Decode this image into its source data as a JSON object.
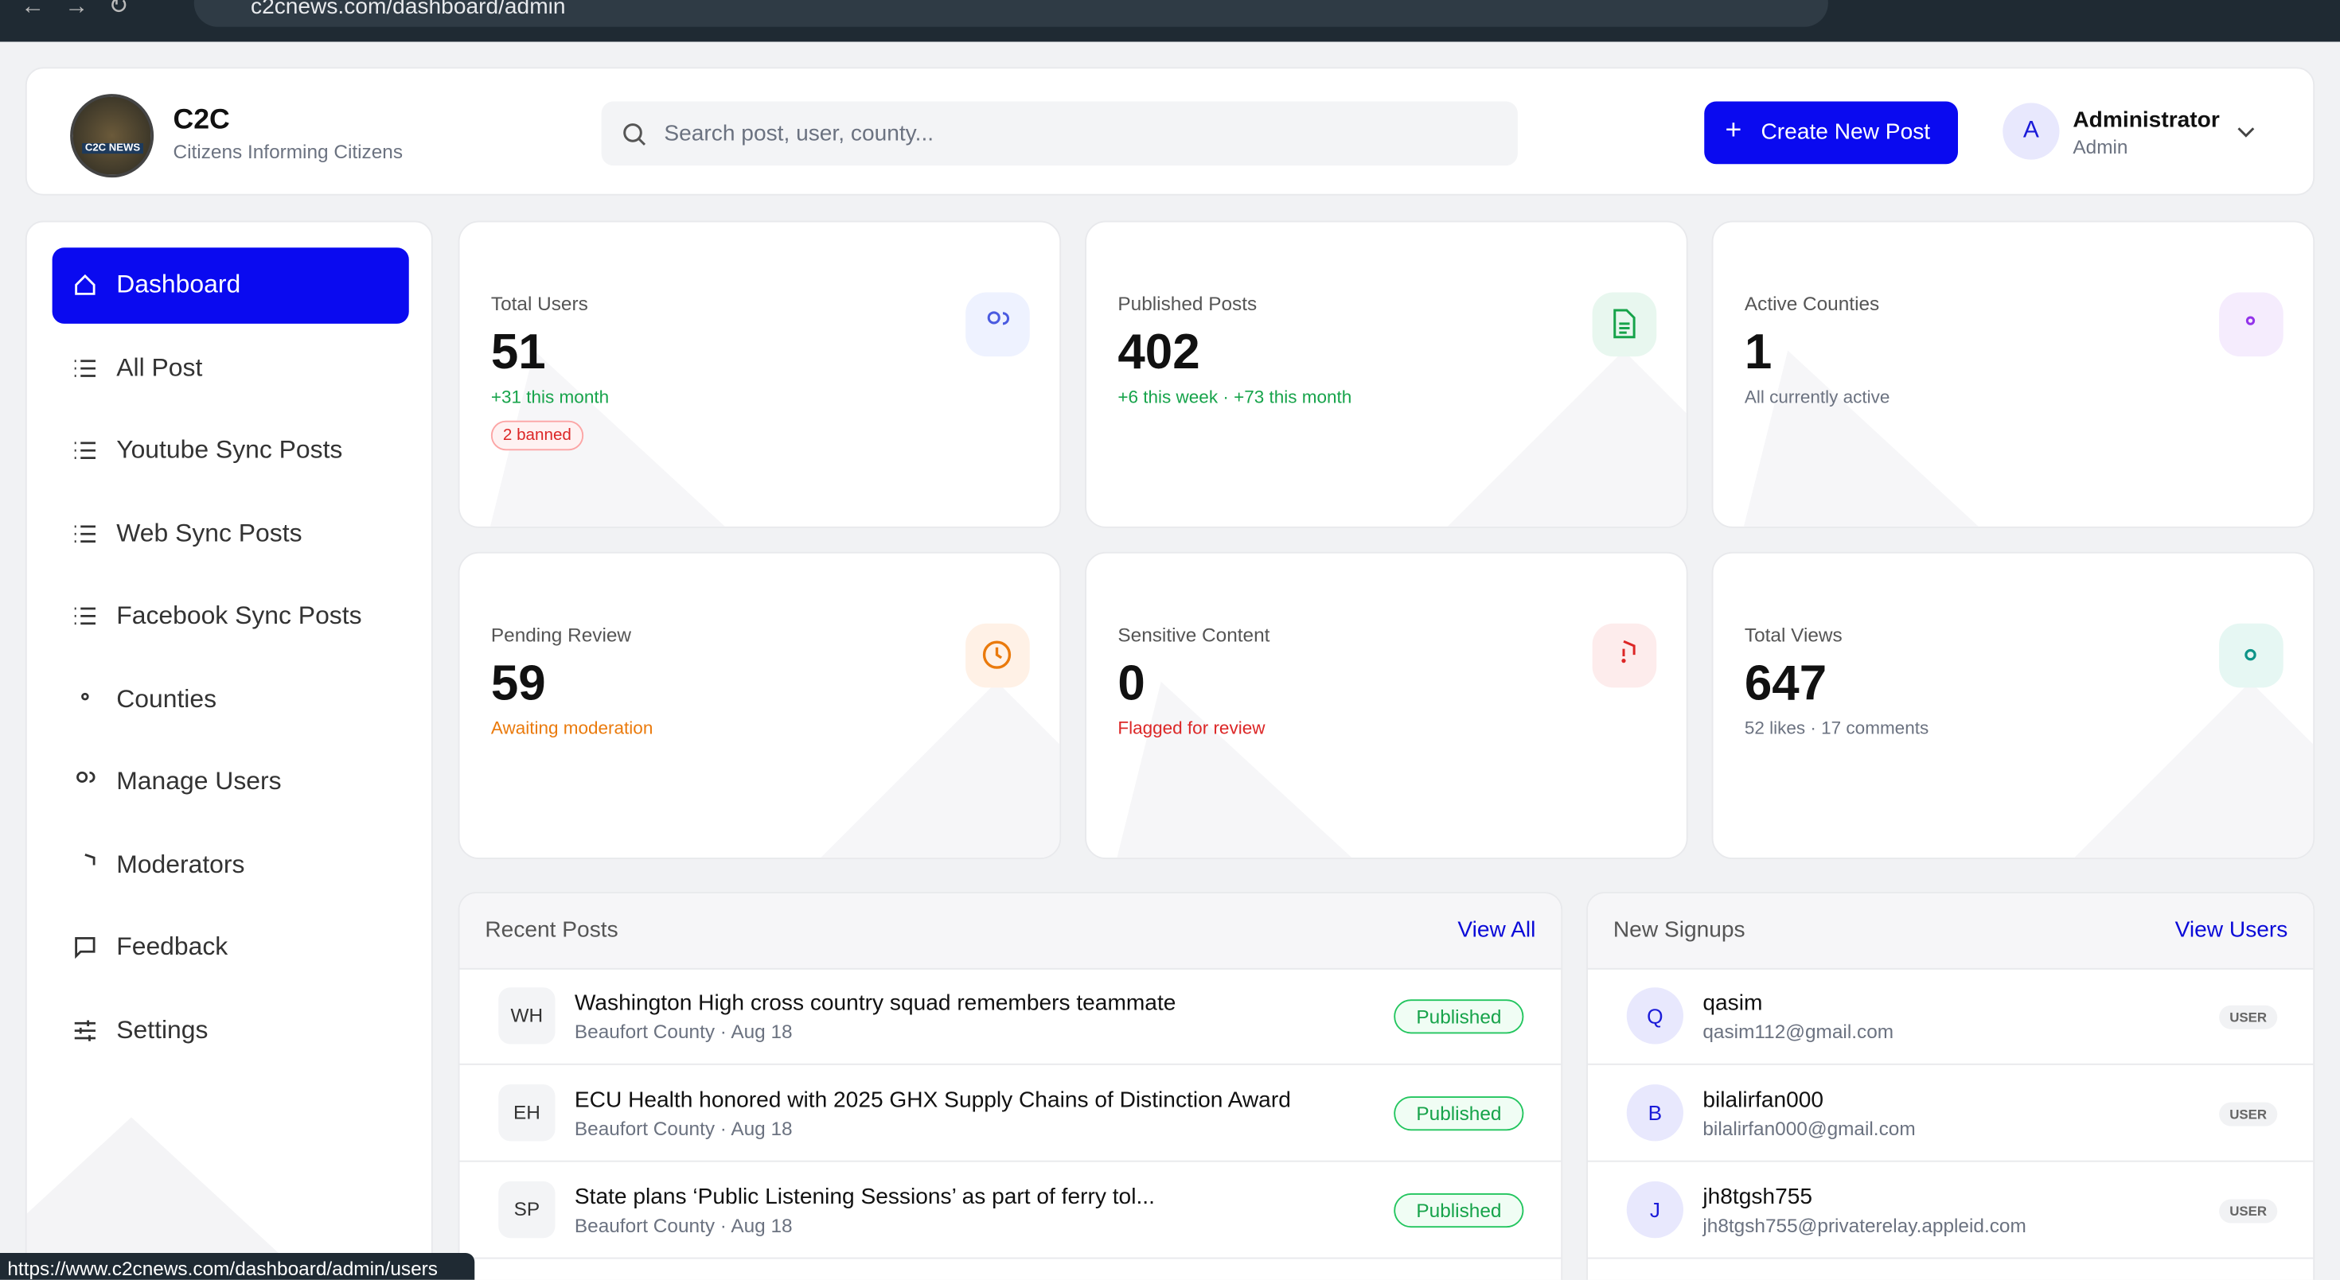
{
  "browser": {
    "url": "c2cnews.com/dashboard/admin",
    "status_url": "https://www.c2cnews.com/dashboard/admin/users"
  },
  "header": {
    "logo_text": "C2C NEWS",
    "brand": "C2C",
    "tagline": "Citizens Informing Citizens",
    "search_placeholder": "Search post, user, county...",
    "create_button": "Create New Post",
    "user": {
      "avatar": "A",
      "name": "Administrator",
      "role": "Admin"
    }
  },
  "sidebar": {
    "items": [
      "Dashboard",
      "All Post",
      "Youtube Sync Posts",
      "Web Sync Posts",
      "Facebook Sync Posts",
      "Counties",
      "Manage Users",
      "Moderators",
      "Feedback",
      "Settings"
    ]
  },
  "stats": [
    {
      "label": "Total Users",
      "value": 51,
      "note": "+31 this month",
      "badge": "2 banned"
    },
    {
      "label": "Published Posts",
      "value": 402,
      "note": "+6 this week · +73 this month"
    },
    {
      "label": "Active Counties",
      "value": 1,
      "note": "All currently active"
    },
    {
      "label": "Pending Review",
      "value": 59,
      "note": "Awaiting moderation"
    },
    {
      "label": "Sensitive Content",
      "value": 0,
      "note": "Flagged for review"
    },
    {
      "label": "Total Views",
      "value": 647,
      "note": "52 likes · 17 comments"
    }
  ],
  "recent_posts": {
    "title": "Recent Posts",
    "link": "View All",
    "items": [
      {
        "initials": "WH",
        "title": "Washington High cross country squad remembers teammate",
        "meta": "Beaufort County · Aug 18",
        "status": "Published"
      },
      {
        "initials": "EH",
        "title": "ECU Health honored with 2025 GHX Supply Chains of Distinction Award",
        "meta": "Beaufort County · Aug 18",
        "status": "Published"
      },
      {
        "initials": "SP",
        "title": "State plans ‘Public Listening Sessions’ as part of ferry tol...",
        "meta": "Beaufort County · Aug 18",
        "status": "Published"
      }
    ]
  },
  "new_signups": {
    "title": "New Signups",
    "link": "View Users",
    "items": [
      {
        "initial": "Q",
        "name": "qasim",
        "email": "qasim112@gmail.com",
        "role": "USER"
      },
      {
        "initial": "B",
        "name": "bilalirfan000",
        "email": "bilalirfan000@gmail.com",
        "role": "USER"
      },
      {
        "initial": "J",
        "name": "jh8tgsh755",
        "email": "jh8tgsh755@privaterelay.appleid.com",
        "role": "USER"
      }
    ]
  }
}
